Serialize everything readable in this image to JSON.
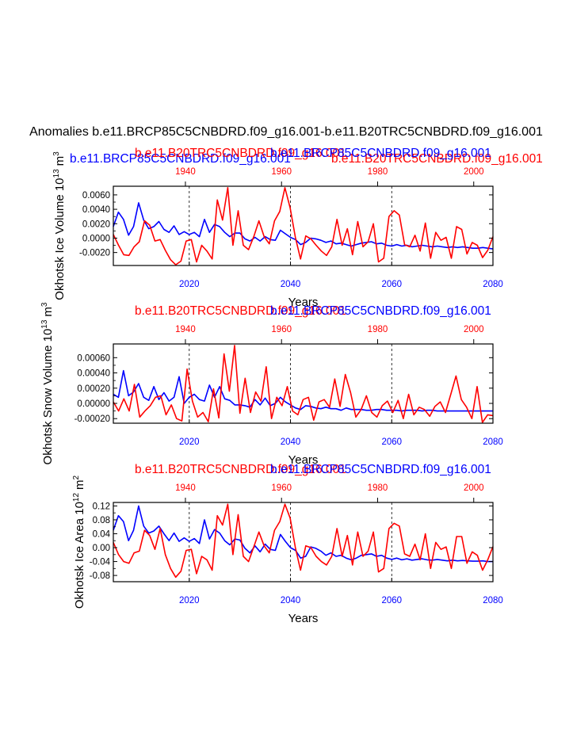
{
  "colors": {
    "blue": "#0000ff",
    "red": "#ff0000",
    "black": "#000000"
  },
  "figure": {
    "title": "Anomalies b.e11.BRCP85C5CNBDRD.f09_g16.001-b.e11.B20TRC5CNBDRD.f09_g16.001",
    "top_left_label": "b.e11.BRCP85C5CNBDRD.f09_g16.001",
    "top_red_label": "b.e11.B20TRC5CNBDRD.f09_g16.001",
    "top_red_label_2": "b.e11.B20TRC5CNBDRD.f09_g16.001",
    "top_blue_label": "b.e11.BRCP85C5CNBDRD.f09_g16.001"
  },
  "chart_data": [
    {
      "type": "line",
      "title_red": "b.e11.B20TRC5CNBDRD.f09_g16.001",
      "title_blue": "b.e11.BRCP85C5CNBDRD.f09_g16.001",
      "xlabel": "Years",
      "ylabel": "Okhotsk Ice Volume 10",
      "ylabel_sup": "13",
      "ylabel_unit": "m",
      "ylabel_unit_sup": "3",
      "ylim": [
        -0.0038,
        0.0072
      ],
      "yticks": [
        -0.002,
        0.0,
        0.002,
        0.004,
        0.006
      ],
      "ytick_labels": [
        "-0.0020",
        "0.0000",
        "0.0020",
        "0.0040",
        "0.0060"
      ],
      "x_bottom": {
        "range": [
          2005,
          2080
        ],
        "ticks": [
          2020,
          2040,
          2060,
          2080
        ],
        "tick_labels": [
          "2020",
          "2040",
          "2060",
          "2080"
        ]
      },
      "x_top": {
        "range": [
          1925,
          2004
        ],
        "ticks": [
          1940,
          1960,
          1980,
          2000
        ],
        "tick_labels": [
          "1940",
          "1960",
          "1980",
          "2000"
        ]
      },
      "dashed_lines_at": [
        2020,
        2040,
        2060
      ],
      "series": [
        {
          "name": "b.e11.BRCP85C5CNBDRD.f09_g16.001",
          "color": "#0000ff",
          "values": [
            0.0016,
            0.0036,
            0.0026,
            0.0004,
            0.0016,
            0.0049,
            0.0025,
            0.0013,
            0.0016,
            0.0023,
            0.0012,
            0.0008,
            0.0017,
            0.0005,
            0.0009,
            0.0005,
            0.0008,
            0.0002,
            0.0026,
            0.0008,
            0.0019,
            0.0016,
            0.0008,
            0.0002,
            0.0007,
            0.0007,
            -0.0001,
            -0.0004,
            0.0001,
            -0.0004,
            0.0002,
            -0.0002,
            -0.0003,
            0.0011,
            0.0006,
            0.0001,
            -0.0002,
            -0.0009,
            -0.0006,
            0.0,
            -0.0001,
            -0.0003,
            -0.0006,
            -0.0004,
            -0.0008,
            -0.0007,
            -0.0009,
            -0.0011,
            -0.0009,
            -0.0007,
            -0.0006,
            -0.0005,
            -0.0008,
            -0.0007,
            -0.001,
            -0.0011,
            -0.0009,
            -0.0011,
            -0.001,
            -0.0012,
            -0.0011,
            -0.001,
            -0.0011,
            -0.0012,
            -0.0011,
            -0.0012,
            -0.0013,
            -0.0012,
            -0.0013,
            -0.0012,
            -0.0013,
            -0.0014,
            -0.0014,
            -0.0013,
            -0.0014,
            -0.0015
          ]
        },
        {
          "name": "b.e11.B20TRC5CNBDRD.f09_g16.001",
          "color": "#ff0000",
          "values": [
            0.0005,
            -0.001,
            -0.0023,
            -0.0024,
            -0.0012,
            -0.0005,
            0.0024,
            0.0018,
            -0.0004,
            -0.0002,
            -0.0017,
            -0.003,
            -0.0037,
            -0.0032,
            -0.0004,
            -0.0002,
            -0.0033,
            -0.001,
            -0.0018,
            -0.0029,
            0.0053,
            0.0025,
            0.007,
            -0.001,
            0.0038,
            -0.001,
            -0.0016,
            0.0002,
            0.0024,
            0.0002,
            -0.0008,
            0.0024,
            0.0037,
            0.007,
            0.0042,
            0.0001,
            -0.0029,
            0.0003,
            -0.0001,
            -0.001,
            -0.0018,
            -0.0024,
            -0.0012,
            0.0026,
            -0.001,
            0.0013,
            -0.0023,
            0.0023,
            -0.0012,
            -0.0005,
            0.002,
            -0.0033,
            -0.0028,
            0.003,
            0.0038,
            0.0032,
            -0.0009,
            -0.0012,
            0.0004,
            -0.0018,
            0.0021,
            -0.0028,
            0.0008,
            -0.0003,
            0.0001,
            -0.0028,
            0.0016,
            0.0012,
            -0.0022,
            -0.0006,
            -0.001,
            -0.0027,
            -0.0017,
            0.0002
          ]
        }
      ]
    },
    {
      "type": "line",
      "title_red": "b.e11.B20TRC5CNBDRD.f09_g16.001",
      "title_blue": "b.e11.BRCP85C5CNBDRD.f09_g16.001",
      "xlabel": "Years",
      "ylabel": "Okhotsk Snow Volume 10",
      "ylabel_sup": "13",
      "ylabel_unit": "m",
      "ylabel_unit_sup": "3",
      "ylim": [
        -0.00026,
        0.00078
      ],
      "yticks": [
        -0.0002,
        0.0,
        0.0002,
        0.0004,
        0.0006
      ],
      "ytick_labels": [
        "-0.00020",
        "0.00000",
        "0.00020",
        "0.00040",
        "0.00060"
      ],
      "x_bottom": {
        "range": [
          2005,
          2080
        ],
        "ticks": [
          2020,
          2040,
          2060,
          2080
        ],
        "tick_labels": [
          "2020",
          "2040",
          "2060",
          "2080"
        ]
      },
      "x_top": {
        "range": [
          1925,
          2004
        ],
        "ticks": [
          1940,
          1960,
          1980,
          2000
        ],
        "tick_labels": [
          "1940",
          "1960",
          "1980",
          "2000"
        ]
      },
      "dashed_lines_at": [
        2020,
        2040,
        2060
      ],
      "series": [
        {
          "name": "b.e11.BRCP85C5CNBDRD.f09_g16.001",
          "color": "#0000ff",
          "values": [
            0.00012,
            8e-05,
            0.00043,
            0.0001,
            0.00015,
            0.00026,
            8e-05,
            4e-05,
            0.00022,
            5e-05,
            0.00014,
            3e-05,
            8e-05,
            0.00035,
            0.0,
            8e-05,
            0.00012,
            5e-05,
            3e-05,
            0.00024,
            8e-05,
            0.00022,
            6e-05,
            4e-05,
            -2e-05,
            -2e-05,
            -3e-05,
            -5e-05,
            5e-05,
            -2e-05,
            7e-05,
            -3e-05,
            0.0,
            8e-05,
            2e-05,
            -2e-05,
            -6e-05,
            -8e-05,
            -3e-05,
            -4e-05,
            -6e-05,
            -7e-05,
            -5e-05,
            -7e-05,
            -7e-05,
            -9e-05,
            -6e-05,
            -8e-05,
            -8e-05,
            -8e-05,
            -9e-05,
            -9e-05,
            -8e-05,
            -8e-05,
            -9e-05,
            -9e-05,
            -9e-05,
            -0.0001,
            -9e-05,
            -9e-05,
            -9e-05,
            -0.0001,
            -9e-05,
            -9e-05,
            -0.0001,
            -0.0001,
            -0.0001,
            -0.0001,
            -0.0001,
            -0.0001,
            -0.0001,
            -0.0001,
            -0.0001,
            -0.0001,
            -0.0001,
            -0.0001
          ]
        },
        {
          "name": "b.e11.B20TRC5CNBDRD.f09_g16.001",
          "color": "#ff0000",
          "values": [
            2e-05,
            -0.0001,
            6e-05,
            -0.0001,
            0.00025,
            -0.00018,
            -0.0001,
            -3e-05,
            8e-05,
            0.0001,
            -0.00015,
            -2e-05,
            -0.0002,
            -0.00023,
            0.00045,
            3e-05,
            -0.00018,
            -0.00012,
            -0.00024,
            0.00019,
            -0.00019,
            0.00065,
            0.00016,
            0.00076,
            -0.00013,
            0.00033,
            -0.00012,
            0.00015,
            3e-05,
            0.00048,
            -0.0002,
            8e-05,
            -3e-05,
            0.00022,
            -0.0001,
            -0.00015,
            5e-05,
            8e-05,
            -0.00022,
            2e-05,
            5e-05,
            -5e-05,
            0.00032,
            -4e-05,
            0.00038,
            0.00014,
            -0.00018,
            -8e-05,
            0.0001,
            -0.00012,
            -0.00018,
            -3e-05,
            3e-05,
            -0.00012,
            4e-05,
            -0.0002,
            0.00012,
            -0.00015,
            -5e-05,
            -8e-05,
            -0.00017,
            -4e-05,
            2e-05,
            -0.00012,
            0.00012,
            0.00036,
            5e-05,
            -5e-05,
            -0.0002,
            0.00022,
            -0.00025,
            -0.00015,
            -0.00016
          ]
        }
      ]
    },
    {
      "type": "line",
      "title_red": "b.e11.B20TRC5CNBDRD.f09_g16.001",
      "title_blue": "b.e11.BRCP85C5CNBDRD.f09_g16.001",
      "xlabel": "Years",
      "ylabel": "Okhotsk Ice Area 10",
      "ylabel_sup": "12",
      "ylabel_unit": "m",
      "ylabel_unit_sup": "2",
      "ylim": [
        -0.098,
        0.13
      ],
      "yticks": [
        -0.08,
        -0.04,
        0.0,
        0.04,
        0.08,
        0.12
      ],
      "ytick_labels": [
        "-0.08",
        "-0.04",
        "0.00",
        "0.04",
        "0.08",
        "0.12"
      ],
      "x_bottom": {
        "range": [
          2005,
          2080
        ],
        "ticks": [
          2020,
          2040,
          2060,
          2080
        ],
        "tick_labels": [
          "2020",
          "2040",
          "2060",
          "2080"
        ]
      },
      "x_top": {
        "range": [
          1925,
          2004
        ],
        "ticks": [
          1940,
          1960,
          1980,
          2000
        ],
        "tick_labels": [
          "1940",
          "1960",
          "1980",
          "2000"
        ]
      },
      "dashed_lines_at": [
        2020,
        2040,
        2060
      ],
      "series": [
        {
          "name": "b.e11.BRCP85C5CNBDRD.f09_g16.001",
          "color": "#0000ff",
          "values": [
            0.05,
            0.092,
            0.075,
            0.02,
            0.05,
            0.12,
            0.062,
            0.042,
            0.048,
            0.062,
            0.04,
            0.02,
            0.042,
            0.018,
            0.028,
            0.018,
            0.026,
            0.012,
            0.08,
            0.025,
            0.052,
            0.042,
            0.02,
            0.008,
            0.025,
            0.022,
            -0.002,
            -0.015,
            0.005,
            -0.012,
            0.01,
            -0.005,
            -0.008,
            0.038,
            0.018,
            0.0,
            -0.008,
            -0.03,
            -0.025,
            0.002,
            -0.002,
            -0.01,
            -0.022,
            -0.015,
            -0.025,
            -0.022,
            -0.03,
            -0.035,
            -0.03,
            -0.022,
            -0.02,
            -0.018,
            -0.025,
            -0.022,
            -0.03,
            -0.034,
            -0.03,
            -0.035,
            -0.032,
            -0.036,
            -0.034,
            -0.032,
            -0.035,
            -0.036,
            -0.034,
            -0.036,
            -0.038,
            -0.036,
            -0.038,
            -0.037,
            -0.038,
            -0.039,
            -0.039,
            -0.038,
            -0.04,
            -0.04
          ]
        },
        {
          "name": "b.e11.B20TRC5CNBDRD.f09_g16.001",
          "color": "#ff0000",
          "values": [
            0.015,
            -0.02,
            -0.04,
            -0.045,
            -0.015,
            -0.01,
            0.05,
            0.035,
            -0.005,
            0.055,
            -0.02,
            -0.06,
            -0.085,
            -0.068,
            -0.008,
            -0.005,
            -0.075,
            -0.025,
            -0.035,
            -0.065,
            0.092,
            0.065,
            0.125,
            -0.02,
            0.095,
            -0.025,
            -0.04,
            0.002,
            0.045,
            0.005,
            -0.015,
            0.05,
            0.075,
            0.125,
            0.085,
            0.0,
            -0.065,
            0.005,
            0.0,
            -0.025,
            -0.04,
            -0.05,
            -0.025,
            0.055,
            -0.025,
            0.035,
            -0.05,
            0.045,
            -0.025,
            -0.01,
            0.045,
            -0.07,
            -0.06,
            0.055,
            0.07,
            0.062,
            -0.018,
            -0.025,
            0.01,
            -0.035,
            0.04,
            -0.06,
            0.015,
            -0.005,
            0.002,
            -0.06,
            0.032,
            0.032,
            -0.045,
            -0.012,
            -0.022,
            -0.065,
            -0.035,
            0.003
          ]
        }
      ]
    }
  ]
}
